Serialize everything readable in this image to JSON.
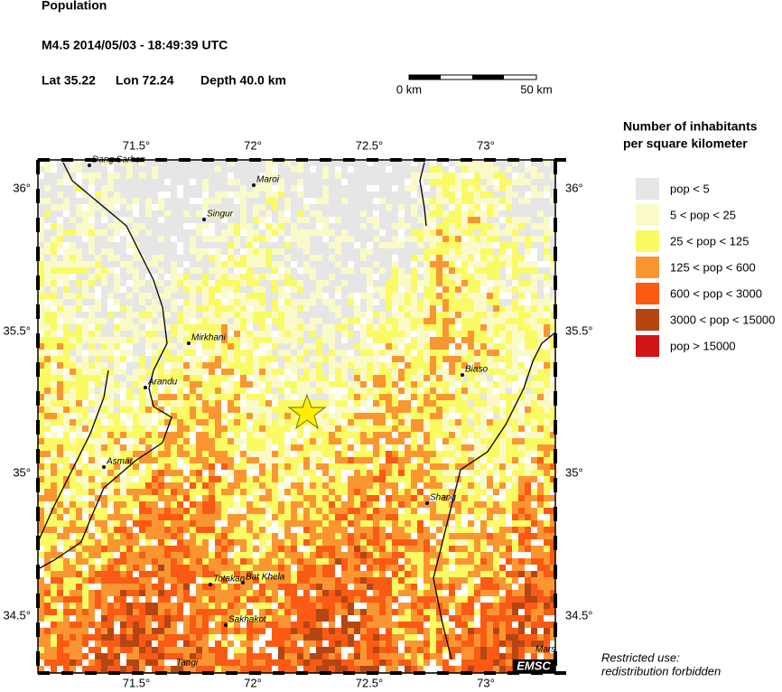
{
  "header": {
    "title": "Population",
    "event": "M4.5  2014/05/03 - 18:49:39 UTC",
    "lat": "Lat 35.22",
    "lon": "Lon 72.24",
    "depth": "Depth  40.0 km"
  },
  "scale": {
    "start": "0 km",
    "end": "50 km"
  },
  "map": {
    "lon_labels": [
      "71.5°",
      "72°",
      "72.5°",
      "73°"
    ],
    "lat_labels": [
      "36°",
      "35.5°",
      "35°",
      "34.5°"
    ],
    "towns": [
      "Dang Sarhen",
      "Maroi",
      "Singur",
      "Mirkhani",
      "Arandu",
      "Biaso",
      "Asmar",
      "Shang",
      "Totakan",
      "Bat Khela",
      "Sakhakot",
      "Tangi",
      "Mars"
    ],
    "logo": "EMSC"
  },
  "legend": {
    "title": [
      "Number of inhabitants",
      "per square kilometer"
    ],
    "items": [
      {
        "label": "pop < 5",
        "color": "#e6e6e6"
      },
      {
        "label": "5 < pop < 25",
        "color": "#fafac8"
      },
      {
        "label": "25 < pop < 125",
        "color": "#fafa64"
      },
      {
        "label": "125 < pop < 600",
        "color": "#fa9632"
      },
      {
        "label": "600 < pop < 3000",
        "color": "#fa5a14"
      },
      {
        "label": "3000 < pop < 15000",
        "color": "#b44614"
      },
      {
        "label": "pop > 15000",
        "color": "#d21414"
      }
    ]
  },
  "note": [
    "Restricted use:",
    "redistribution forbidden"
  ]
}
